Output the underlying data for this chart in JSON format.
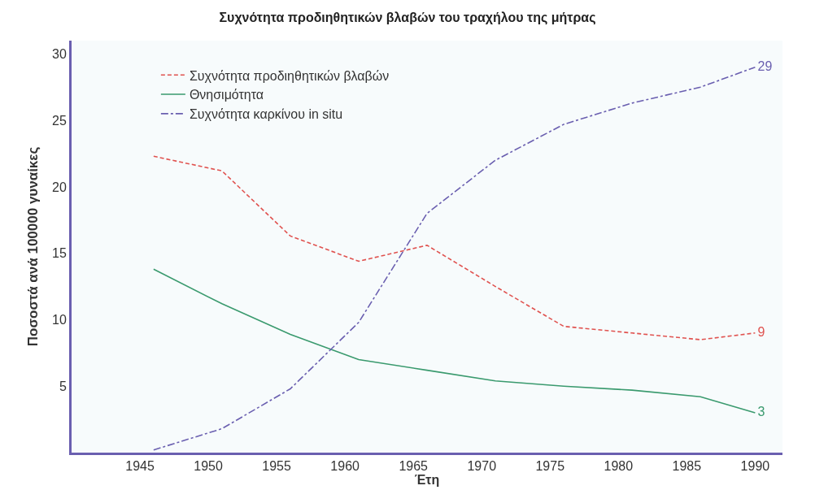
{
  "chart_data": {
    "type": "line",
    "title": "Συχνότητα προδιηθητικών βλαβών του τραχήλου της μήτρας",
    "xlabel": "Έτη",
    "ylabel": "Ποσοστά ανά 100000 γυναίκες",
    "x": [
      1946,
      1951,
      1956,
      1961,
      1966,
      1971,
      1976,
      1981,
      1986,
      1990
    ],
    "series": [
      {
        "name": "Συχνότητα προδιηθητικών βλαβών",
        "color": "#e0524f",
        "line_style": "dashed",
        "values": [
          22.3,
          21.2,
          16.3,
          14.4,
          15.6,
          12.5,
          9.5,
          9.0,
          8.5,
          9
        ],
        "value_labels": [
          null,
          null,
          null,
          null,
          null,
          null,
          null,
          null,
          null,
          "9"
        ]
      },
      {
        "name": "Θνησιμότητα",
        "color": "#3a9a6e",
        "line_style": "solid",
        "values": [
          13.8,
          11.2,
          8.9,
          7.0,
          6.2,
          5.4,
          5.0,
          4.7,
          4.2,
          3
        ],
        "value_labels": [
          null,
          null,
          null,
          null,
          null,
          null,
          null,
          null,
          null,
          "3"
        ]
      },
      {
        "name": "Συχνότητα καρκίνου in situ",
        "color": "#6a5fb0",
        "line_style": "dashdot",
        "values": [
          0.2,
          1.8,
          4.8,
          9.8,
          18.0,
          22.0,
          24.7,
          26.3,
          27.5,
          29
        ],
        "value_labels": [
          null,
          null,
          null,
          null,
          null,
          null,
          null,
          null,
          null,
          "29"
        ]
      }
    ],
    "xlim": [
      1940,
      1992
    ],
    "xticks": [
      1945,
      1950,
      1955,
      1960,
      1965,
      1970,
      1975,
      1980,
      1985,
      1990
    ],
    "ylim": [
      0,
      31
    ],
    "yticks": [
      5,
      10,
      15,
      20,
      25,
      30
    ],
    "grid": false,
    "legend": "top left",
    "marker": "none"
  }
}
